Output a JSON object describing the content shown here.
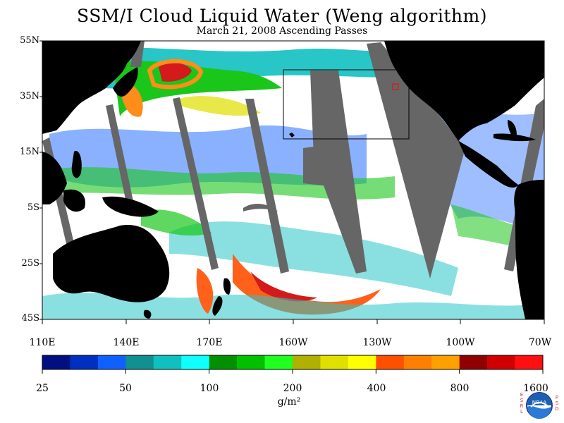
{
  "header": {
    "title": "SSM/I Cloud Liquid Water (Weng algorithm)",
    "subtitle": "March 21, 2008  Ascending Passes"
  },
  "map": {
    "lat_labels": [
      "55N",
      "35N",
      "15N",
      "5S",
      "25S",
      "45S"
    ],
    "lon_labels": [
      "110E",
      "140E",
      "170E",
      "160W",
      "130W",
      "100W",
      "70W"
    ],
    "colors": {
      "land": "#000000",
      "no_data": "#666666",
      "clear": "#ffffff"
    }
  },
  "colorbar": {
    "labels": [
      "25",
      "50",
      "100",
      "200",
      "400",
      "800",
      "1600"
    ],
    "units": "g/m²",
    "colors": [
      "#001080",
      "#0030c0",
      "#1060ff",
      "#109090",
      "#10c0c0",
      "#10ffff",
      "#009000",
      "#00c000",
      "#20ff20",
      "#b0b000",
      "#e0e000",
      "#ffff00",
      "#ff5000",
      "#ff8000",
      "#ffa000",
      "#900000",
      "#d00000",
      "#ff1010"
    ]
  },
  "logo": {
    "center_text": "NOAA",
    "left_letters": [
      "E",
      "S",
      "R",
      "L"
    ],
    "right_letters": [
      "P",
      "S",
      "D"
    ]
  }
}
